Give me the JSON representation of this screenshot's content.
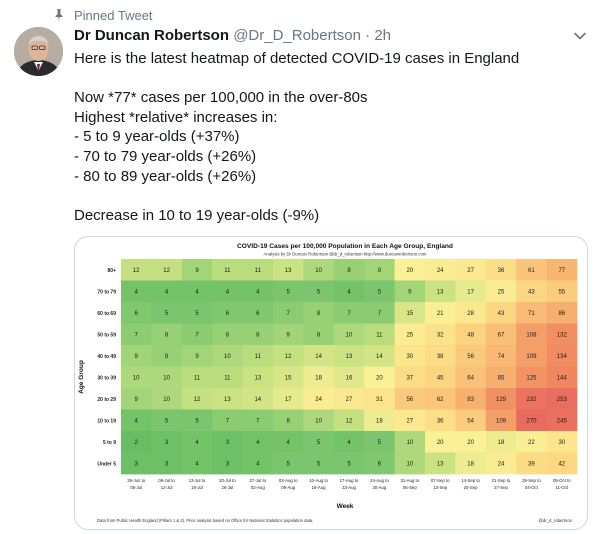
{
  "pinned_label": "Pinned Tweet",
  "author": {
    "name": "Dr Duncan Robertson",
    "handle": "@Dr_D_Robertson",
    "dot": "·",
    "time": "2h"
  },
  "tweet_lines": [
    "Here is the latest heatmap of detected COVID-19 cases in England",
    "",
    "Now *77* cases per 100,000 in the over-80s",
    "Highest *relative* increases in:",
    "- 5 to 9 year-olds (+37%)",
    "- 70 to 79 year-olds (+26%)",
    "- 80 to 89 year-olds (+26%)",
    "",
    "Decrease in 10 to 19 year-olds (-9%)"
  ],
  "icons": {
    "pin": "pin-icon",
    "more": "chevron-down-icon"
  },
  "chart_data": {
    "type": "heatmap",
    "title": "COVID-19 Cases per 100,000 Population in Each Age Group, England",
    "subtitle": "Analysis by Dr Duncan Robertson @dr_d_robertson http://www.duncanrobertson.com",
    "xlabel": "Week",
    "ylabel": "Age Group",
    "footer_left": "Data from Public Health England (Pillars 1 & 2). Prior analysis based on Office for National Statistics population data.",
    "footer_right": "@dr_d_robertson",
    "rows": [
      "80+",
      "70 to 79",
      "60 to 69",
      "50 to 59",
      "40 to 49",
      "30 to 39",
      "20 to 29",
      "10 to 19",
      "5 to 9",
      "Under 5"
    ],
    "weeks": [
      [
        "29-Jun to",
        "05-Jul"
      ],
      [
        "06-Jul to",
        "12-Jul"
      ],
      [
        "13-Jul to",
        "19-Jul"
      ],
      [
        "20-Jul to",
        "26-Jul"
      ],
      [
        "27-Jul to",
        "02-Aug"
      ],
      [
        "03-Aug to",
        "09-Aug"
      ],
      [
        "10-Aug to",
        "16-Aug"
      ],
      [
        "17-Aug to",
        "23-Aug"
      ],
      [
        "24-Aug to",
        "30-Aug"
      ],
      [
        "31-Aug to",
        "06-Sep"
      ],
      [
        "07-Sep to",
        "13-Sep"
      ],
      [
        "14-Sep to",
        "20-Sep"
      ],
      [
        "21-Sep to",
        "27-Sep"
      ],
      [
        "28-Sep to",
        "04-Oct"
      ],
      [
        "05-Oct to",
        "11-Oct"
      ]
    ],
    "values": [
      [
        12,
        12,
        9,
        11,
        11,
        13,
        10,
        8,
        9,
        20,
        24,
        27,
        36,
        61,
        77
      ],
      [
        4,
        4,
        4,
        4,
        4,
        5,
        5,
        4,
        5,
        9,
        13,
        17,
        25,
        43,
        55
      ],
      [
        6,
        5,
        5,
        6,
        6,
        7,
        8,
        7,
        7,
        15,
        21,
        28,
        43,
        71,
        86
      ],
      [
        7,
        8,
        7,
        8,
        8,
        9,
        8,
        10,
        11,
        25,
        32,
        48,
        67,
        108,
        132
      ],
      [
        9,
        8,
        9,
        10,
        11,
        12,
        14,
        13,
        14,
        30,
        38,
        56,
        74,
        109,
        134
      ],
      [
        10,
        10,
        11,
        11,
        13,
        15,
        18,
        16,
        20,
        37,
        45,
        64,
        85,
        125,
        144
      ],
      [
        9,
        10,
        12,
        13,
        14,
        17,
        24,
        27,
        31,
        56,
        62,
        83,
        129,
        232,
        253
      ],
      [
        4,
        5,
        5,
        7,
        7,
        8,
        10,
        12,
        18,
        27,
        36,
        54,
        109,
        270,
        245
      ],
      [
        2,
        3,
        4,
        3,
        4,
        4,
        5,
        4,
        5,
        10,
        20,
        20,
        18,
        22,
        30
      ],
      [
        3,
        3,
        4,
        3,
        4,
        5,
        5,
        5,
        6,
        10,
        13,
        18,
        24,
        39,
        42
      ]
    ]
  }
}
